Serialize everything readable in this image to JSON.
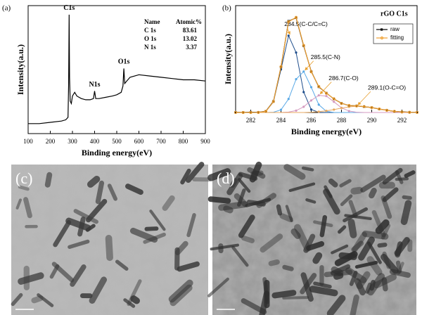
{
  "chart_data": [
    {
      "type": "line",
      "panel": "(a)",
      "x_label": "Binding energy(eV)",
      "y_label": "Intensity(a.u.)",
      "x": [
        100,
        150,
        200,
        250,
        270,
        280,
        283,
        285,
        287,
        290,
        295,
        300,
        310,
        320,
        340,
        360,
        380,
        395,
        400,
        405,
        420,
        450,
        480,
        500,
        520,
        528,
        532,
        536,
        545,
        560,
        600,
        650,
        700,
        750,
        800,
        850,
        900
      ],
      "series": [
        {
          "color": "#000000",
          "values": [
            8,
            8,
            9,
            10,
            11,
            13,
            40,
            95,
            45,
            26,
            24,
            30,
            33,
            30,
            28,
            27,
            27,
            28,
            34,
            28,
            28,
            29,
            30,
            31,
            33,
            38,
            52,
            40,
            42,
            45,
            47,
            46,
            45,
            44,
            43,
            43,
            42
          ]
        }
      ],
      "xlim": [
        100,
        900
      ],
      "xticks": [
        100,
        200,
        300,
        400,
        500,
        600,
        700,
        800,
        900
      ],
      "ylim": [
        0,
        100
      ],
      "annotations": [
        {
          "text": "C1s",
          "x": 285
        },
        {
          "text": "N1s",
          "x": 400
        },
        {
          "text": "O1s",
          "x": 532
        }
      ],
      "inset_table": {
        "header": [
          "Name",
          "Atomic%"
        ],
        "rows": [
          [
            "C 1s",
            "83.61"
          ],
          [
            "O 1s",
            "13.02"
          ],
          [
            "N 1s",
            "3.37"
          ]
        ]
      }
    },
    {
      "type": "line",
      "panel": "(b)",
      "title": "rGO  C1s",
      "x_label": "Binding energy(eV)",
      "y_label": "Intensity(a.u.)",
      "x": [
        281,
        281.5,
        282,
        282.5,
        283,
        283.5,
        284,
        284.5,
        285,
        285.5,
        286,
        286.5,
        287,
        287.5,
        288,
        288.5,
        289,
        289.5,
        290,
        290.5,
        291,
        291.5,
        292,
        292.5,
        293
      ],
      "xlim": [
        281,
        293
      ],
      "xticks": [
        282,
        284,
        286,
        288,
        290,
        292
      ],
      "ylim": [
        0,
        100
      ],
      "legend": "upper right",
      "series": [
        {
          "name": "raw",
          "color": "#000000",
          "marker": "square",
          "values": [
            0.2,
            0.1,
            0.3,
            0.2,
            1.3,
            10.8,
            43.5,
            87.8,
            91,
            64,
            39.5,
            24.6,
            18.7,
            13,
            8.9,
            6.6,
            6.4,
            5.5,
            4.8,
            3.3,
            2.2,
            1,
            0.6,
            0.3,
            0.2
          ]
        },
        {
          "name": "fitting",
          "color": "#f0a030",
          "marker": "circle",
          "values": [
            0,
            0,
            0,
            0.1,
            1.1,
            10.5,
            44.1,
            87.2,
            91.4,
            64.5,
            39.1,
            25,
            18.5,
            13.2,
            8.7,
            6.8,
            6.3,
            5.7,
            4.7,
            3.4,
            2.1,
            1.1,
            0.5,
            0.2,
            0.1
          ]
        }
      ],
      "components": [
        {
          "label": "284.5(C-C/C=C)",
          "color": "#1f4e8c",
          "values": [
            0,
            0,
            0,
            0.1,
            1.1,
            10.2,
            41.4,
            73.8,
            57.6,
            19.6,
            2.9,
            0.2,
            0,
            0,
            0,
            0,
            0,
            0,
            0,
            0,
            0,
            0,
            0,
            0,
            0
          ]
        },
        {
          "label": "285.5(C-N)",
          "color": "#5aa9e6",
          "values": [
            0,
            0,
            0,
            0,
            0,
            0.3,
            2.6,
            13,
            32,
            39.4,
            24.3,
            7.5,
            1.1,
            0.1,
            0,
            0,
            0,
            0,
            0,
            0,
            0,
            0,
            0,
            0,
            0
          ]
        },
        {
          "label": "286.7(C-O)",
          "color": "#d49ac0",
          "values": [
            0,
            0,
            0,
            0,
            0,
            0,
            0.1,
            0.4,
            1.8,
            5.5,
            11.6,
            16.5,
            15.8,
            10.3,
            4.5,
            1.4,
            0.3,
            0,
            0,
            0,
            0,
            0,
            0,
            0,
            0
          ]
        },
        {
          "label": "289.1(O-C=O)",
          "color": "#e8a860",
          "values": [
            0,
            0,
            0,
            0,
            0,
            0,
            0,
            0,
            0,
            0,
            0.3,
            0.8,
            1.6,
            2.8,
            4.2,
            5.4,
            6,
            5.7,
            4.7,
            3.4,
            2.1,
            1.1,
            0.5,
            0.2,
            0.1
          ]
        }
      ]
    }
  ],
  "images": [
    {
      "label": "(c)"
    },
    {
      "label": "(d)"
    }
  ]
}
